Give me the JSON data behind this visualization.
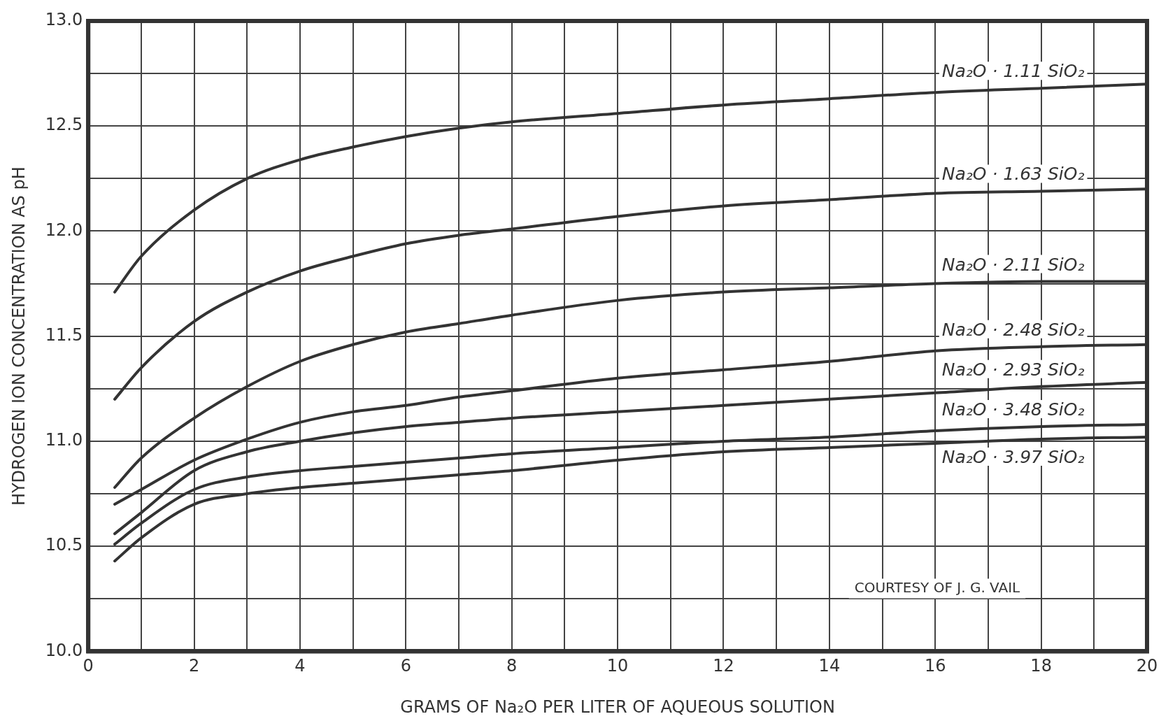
{
  "chart_data": {
    "type": "line",
    "xlabel": "GRAMS OF Na₂O PER LITER OF AQUEOUS SOLUTION",
    "ylabel": "HYDROGEN ION CONCENTRATION AS pH",
    "x": [
      0.5,
      1,
      2,
      3,
      4,
      5,
      6,
      7,
      8,
      10,
      12,
      14,
      16,
      18,
      20
    ],
    "series": [
      {
        "name": "Na₂O · 1.11 SiO₂",
        "color": "#333333",
        "values": [
          11.71,
          11.88,
          12.1,
          12.25,
          12.34,
          12.4,
          12.45,
          12.49,
          12.52,
          12.56,
          12.6,
          12.63,
          12.66,
          12.68,
          12.7
        ]
      },
      {
        "name": "Na₂O · 1.63 SiO₂",
        "color": "#333333",
        "values": [
          11.2,
          11.35,
          11.57,
          11.71,
          11.81,
          11.88,
          11.94,
          11.98,
          12.01,
          12.07,
          12.12,
          12.15,
          12.18,
          12.19,
          12.2
        ]
      },
      {
        "name": "Na₂O · 2.11 SiO₂",
        "color": "#333333",
        "values": [
          10.78,
          10.92,
          11.11,
          11.26,
          11.38,
          11.46,
          11.52,
          11.56,
          11.6,
          11.67,
          11.71,
          11.73,
          11.75,
          11.76,
          11.76
        ]
      },
      {
        "name": "Na₂O · 2.48 SiO₂",
        "color": "#333333",
        "values": [
          10.7,
          10.77,
          10.91,
          11.01,
          11.09,
          11.14,
          11.17,
          11.21,
          11.24,
          11.3,
          11.34,
          11.38,
          11.43,
          11.45,
          11.46
        ]
      },
      {
        "name": "Na₂O · 2.93 SiO₂",
        "color": "#333333",
        "values": [
          10.56,
          10.66,
          10.86,
          10.95,
          11.0,
          11.04,
          11.07,
          11.09,
          11.11,
          11.14,
          11.17,
          11.2,
          11.23,
          11.26,
          11.28
        ]
      },
      {
        "name": "Na₂O · 3.48 SiO₂",
        "color": "#333333",
        "values": [
          10.51,
          10.61,
          10.77,
          10.83,
          10.86,
          10.88,
          10.9,
          10.92,
          10.94,
          10.97,
          11.0,
          11.02,
          11.05,
          11.07,
          11.08
        ]
      },
      {
        "name": "Na₂O · 3.97 SiO₂",
        "color": "#333333",
        "values": [
          10.43,
          10.54,
          10.7,
          10.75,
          10.78,
          10.8,
          10.82,
          10.84,
          10.86,
          10.91,
          10.95,
          10.97,
          10.99,
          11.01,
          11.02
        ]
      }
    ],
    "xlim": [
      0,
      20
    ],
    "xticks": [
      0,
      {
        "value": 1,
        "label": null
      },
      2,
      {
        "value": 3,
        "label": null
      },
      4,
      {
        "value": 5,
        "label": null
      },
      6,
      {
        "value": 7,
        "label": null
      },
      8,
      {
        "value": 9,
        "label": null
      },
      10,
      {
        "value": 11,
        "label": null
      },
      12,
      {
        "value": 13,
        "label": null
      },
      14,
      {
        "value": 15,
        "label": null
      },
      16,
      {
        "value": 17,
        "label": null
      },
      18,
      {
        "value": 19,
        "label": null
      },
      20
    ],
    "ylim": [
      10,
      13
    ],
    "yticks": [
      {
        "value": 10,
        "label": "10.0"
      },
      {
        "value": 10.25,
        "label": null
      },
      {
        "value": 10.5,
        "label": "10.5"
      },
      {
        "value": 10.75,
        "label": null
      },
      {
        "value": 11,
        "label": "11.0"
      },
      {
        "value": 11.25,
        "label": null
      },
      {
        "value": 11.5,
        "label": "11.5"
      },
      {
        "value": 11.75,
        "label": null
      },
      {
        "value": 12,
        "label": "12.0"
      },
      {
        "value": 12.25,
        "label": null
      },
      {
        "value": 12.5,
        "label": "12.5"
      },
      {
        "value": 12.75,
        "label": null
      },
      {
        "value": 13,
        "label": "13.0"
      }
    ],
    "annotations": [
      "COURTESY OF J. G. VAIL"
    ],
    "grid": true,
    "legend": false,
    "marker": "none",
    "line_style": "solid"
  }
}
